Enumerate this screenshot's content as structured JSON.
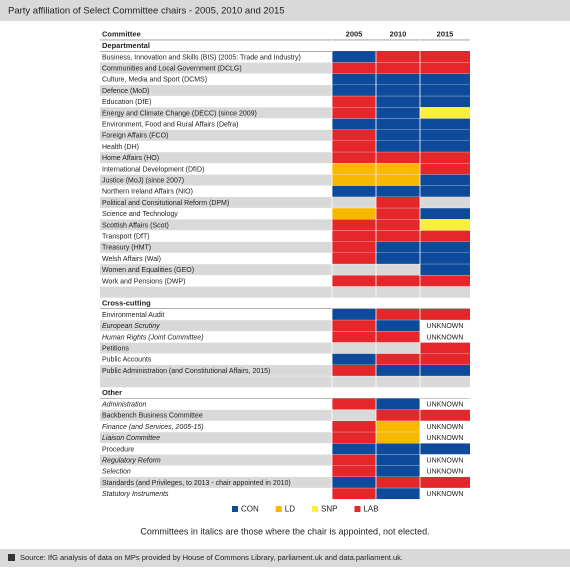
{
  "title": "Party affiliation of Select Committee chairs - 2005, 2010 and 2015",
  "table": {
    "columns": [
      "Committee",
      "2005",
      "2010",
      "2015"
    ],
    "sections": [
      {
        "name": "Departmental",
        "rows": [
          {
            "committee": "Business, Innovation and Skills (BIS) (2005: Trade and Industry)",
            "italic": false,
            "cells": [
              "CON",
              "LAB",
              "LAB"
            ]
          },
          {
            "committee": "Communities and Local Government (DCLG)",
            "italic": false,
            "cells": [
              "LAB",
              "LAB",
              "LAB"
            ]
          },
          {
            "committee": "Culture, Media and Sport (DCMS)",
            "italic": false,
            "cells": [
              "CON",
              "CON",
              "CON"
            ]
          },
          {
            "committee": "Defence (MoD)",
            "italic": false,
            "cells": [
              "CON",
              "CON",
              "CON"
            ]
          },
          {
            "committee": "Education (DfE)",
            "italic": false,
            "cells": [
              "LAB",
              "CON",
              "CON"
            ]
          },
          {
            "committee": "Energy and Climate Change (DECC) (since 2009)",
            "italic": false,
            "cells": [
              "LAB",
              "CON",
              "SNP"
            ]
          },
          {
            "committee": "Environment, Food and Rural Affairs (Defra)",
            "italic": false,
            "cells": [
              "CON",
              "CON",
              "CON"
            ]
          },
          {
            "committee": "Foreign Affairs (FCO)",
            "italic": false,
            "cells": [
              "LAB",
              "CON",
              "CON"
            ]
          },
          {
            "committee": "Health (DH)",
            "italic": false,
            "cells": [
              "LAB",
              "CON",
              "CON"
            ]
          },
          {
            "committee": "Home Affairs (HO)",
            "italic": false,
            "cells": [
              "LAB",
              "LAB",
              "LAB"
            ]
          },
          {
            "committee": "International Development (DfID)",
            "italic": false,
            "cells": [
              "LD",
              "LD",
              "LAB"
            ]
          },
          {
            "committee": "Justice (MoJ) (since 2007)",
            "italic": false,
            "cells": [
              "LD",
              "LD",
              "CON"
            ]
          },
          {
            "committee": "Northern Ireland Affairs (NIO)",
            "italic": false,
            "cells": [
              "CON",
              "CON",
              "CON"
            ]
          },
          {
            "committee": "Political and Consitutional Reform (DPM)",
            "italic": false,
            "cells": [
              null,
              "LAB",
              null
            ]
          },
          {
            "committee": "Science and Technology",
            "italic": false,
            "cells": [
              "LD",
              "LAB",
              "CON"
            ]
          },
          {
            "committee": "Scottish Affairs (Scot)",
            "italic": false,
            "cells": [
              "LAB",
              "LAB",
              "SNP"
            ]
          },
          {
            "committee": "Transport (DfT)",
            "italic": false,
            "cells": [
              "LAB",
              "LAB",
              "LAB"
            ]
          },
          {
            "committee": "Treasury (HMT)",
            "italic": false,
            "cells": [
              "LAB",
              "CON",
              "CON"
            ]
          },
          {
            "committee": "Welsh Affairs (Wal)",
            "italic": false,
            "cells": [
              "LAB",
              "CON",
              "CON"
            ]
          },
          {
            "committee": "Women and Equalities (GEO)",
            "italic": false,
            "cells": [
              null,
              null,
              "CON"
            ]
          },
          {
            "committee": "Work and Pensions (DWP)",
            "italic": false,
            "cells": [
              "LAB",
              "LAB",
              "LAB"
            ]
          }
        ]
      },
      {
        "name": "Cross-cutting",
        "rows": [
          {
            "committee": "Environmental Audit",
            "italic": false,
            "cells": [
              "CON",
              "LAB",
              "LAB"
            ]
          },
          {
            "committee": "European Scrutiny",
            "italic": true,
            "cells": [
              "LAB",
              "CON",
              "UNKNOWN"
            ]
          },
          {
            "committee": "Human Rights (Joint Committee)",
            "italic": true,
            "cells": [
              "LAB",
              "LAB",
              "UNKNOWN"
            ]
          },
          {
            "committee": "Petitions",
            "italic": false,
            "cells": [
              null,
              null,
              "LAB"
            ]
          },
          {
            "committee": "Public Accounts",
            "italic": false,
            "cells": [
              "CON",
              "LAB",
              "LAB"
            ]
          },
          {
            "committee": "Public Administration (and Constitutional Affairs, 2015)",
            "italic": false,
            "cells": [
              "LAB",
              "CON",
              "CON"
            ]
          }
        ]
      },
      {
        "name": "Other",
        "rows": [
          {
            "committee": "Administration",
            "italic": true,
            "cells": [
              "LAB",
              "CON",
              "UNKNOWN"
            ]
          },
          {
            "committee": "Backbench Business Committee",
            "italic": false,
            "cells": [
              null,
              "LAB",
              "LAB"
            ]
          },
          {
            "committee": "Finance (and Services, 2005-15)",
            "italic": true,
            "cells": [
              "LAB",
              "LD",
              "UNKNOWN"
            ]
          },
          {
            "committee": "Liaison Committee",
            "italic": true,
            "cells": [
              "LAB",
              "LD",
              "UNKNOWN"
            ]
          },
          {
            "committee": "Procedure",
            "italic": false,
            "cells": [
              "CON",
              "CON",
              "CON"
            ]
          },
          {
            "committee": "Regulatory Reform",
            "italic": true,
            "cells": [
              "LAB",
              "CON",
              "UNKNOWN"
            ]
          },
          {
            "committee": "Selection",
            "italic": true,
            "cells": [
              "LAB",
              "CON",
              "UNKNOWN"
            ]
          },
          {
            "committee": "Standards (and Privileges, to 2013 - chair appointed in 2010)",
            "italic": false,
            "cells": [
              "CON",
              "LAB",
              "LAB"
            ]
          },
          {
            "committee": "Statutory Instruments",
            "italic": true,
            "cells": [
              "LAB",
              "CON",
              "UNKNOWN"
            ]
          }
        ]
      }
    ]
  },
  "legend": [
    {
      "label": "CON",
      "color": "#0d4a9b"
    },
    {
      "label": "LD",
      "color": "#f8b800"
    },
    {
      "label": "SNP",
      "color": "#f9ef3c"
    },
    {
      "label": "LAB",
      "color": "#e5262a"
    }
  ],
  "note": "Committees in italics are those where the chair is appointed, not elected.",
  "source": "Source: IfG analysis of data on MPs provided by House of Commons Library, parliament.uk and data.parliament.uk."
}
